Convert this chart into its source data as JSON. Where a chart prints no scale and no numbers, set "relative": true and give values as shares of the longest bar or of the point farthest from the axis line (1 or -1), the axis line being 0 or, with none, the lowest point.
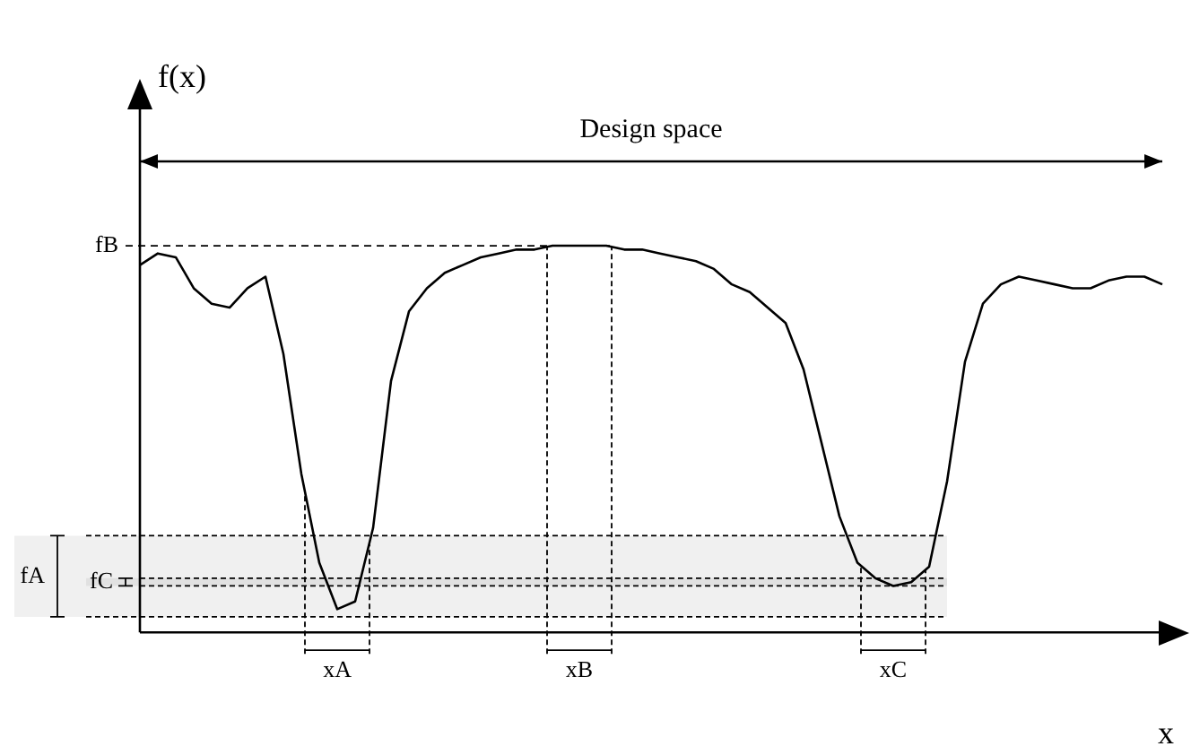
{
  "chart_data": {
    "type": "line",
    "relative": true,
    "xlabel": "x",
    "ylabel": "f(x)",
    "legend": false,
    "marker": "none",
    "line_style": "solid",
    "categories": [
      null,
      null,
      null,
      null,
      null,
      null,
      null,
      null,
      null,
      null,
      null,
      null,
      null,
      null,
      null,
      null,
      null,
      null,
      null,
      null,
      null,
      null,
      null,
      null,
      null,
      null,
      null,
      null,
      null,
      null,
      null,
      null,
      null,
      null,
      null,
      null,
      null,
      null,
      null,
      null,
      null,
      null,
      null,
      null,
      null,
      null,
      null,
      null,
      null,
      null,
      null,
      null,
      null,
      null,
      null,
      null,
      null,
      null
    ],
    "series": [
      {
        "color": "#000000",
        "values": [
          0.95,
          0.98,
          0.97,
          0.89,
          0.85,
          0.84,
          0.89,
          0.92,
          0.72,
          0.41,
          0.18,
          0.06,
          0.08,
          0.27,
          0.65,
          0.83,
          0.89,
          0.93,
          0.95,
          0.97,
          0.98,
          0.99,
          0.99,
          1,
          1,
          1,
          1,
          0.99,
          0.99,
          0.98,
          0.97,
          0.96,
          0.94,
          0.9,
          0.88,
          0.84,
          0.8,
          0.68,
          0.49,
          0.3,
          0.18,
          0.14,
          0.12,
          0.13,
          0.17,
          0.39,
          0.7,
          0.85,
          0.9,
          0.92,
          0.91,
          0.9,
          0.89,
          0.89,
          0.91,
          0.92,
          0.92,
          0.9
        ]
      }
    ],
    "ref_lines": [
      {
        "axis": "y",
        "value": 1,
        "label": "fB",
        "color": "#000000",
        "line_style": "dashed"
      }
    ],
    "bands": [
      {
        "axis": "y",
        "from": 0.04,
        "to": 0.25,
        "label": "fA",
        "color": "#000000"
      },
      {
        "axis": "y",
        "from": 0.12,
        "to": 0.14,
        "label": "fC",
        "color": "#000000"
      }
    ],
    "annotations": [
      "Design space",
      {
        "text": "xA",
        "y": 0.06
      },
      "xB",
      {
        "text": "xC",
        "y": 0.12
      }
    ]
  }
}
